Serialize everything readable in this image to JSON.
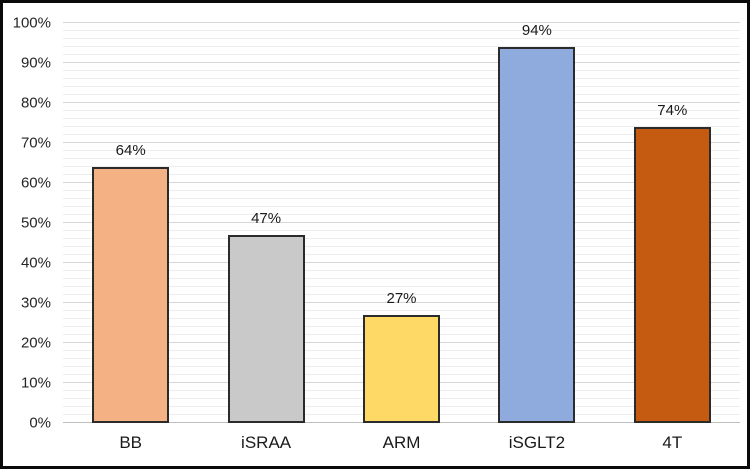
{
  "chart_data": {
    "type": "bar",
    "title": "",
    "xlabel": "",
    "ylabel": "",
    "categories": [
      "BB",
      "iSRAA",
      "ARM",
      "iSGLT2",
      "4T"
    ],
    "values": [
      64,
      47,
      27,
      94,
      74
    ],
    "value_labels": [
      "64%",
      "47%",
      "27%",
      "94%",
      "74%"
    ],
    "bar_colors": [
      "#F4B183",
      "#C9C9C9",
      "#FFD966",
      "#8FAADC",
      "#C55A11"
    ],
    "bar_border_color": "#2B2B2B",
    "ylim": [
      0,
      100
    ],
    "y_ticks": [
      "0%",
      "10%",
      "20%",
      "30%",
      "40%",
      "50%",
      "60%",
      "70%",
      "80%",
      "90%",
      "100%"
    ],
    "y_major_step": 10,
    "y_minor_step": 2,
    "grid": "horizontal, major and minor lines, no vertical gridlines",
    "legend": "none",
    "colors": {
      "major_gridline": "#D6D6D6",
      "minor_gridline": "#EDEDED",
      "axis_line": "#BFBFBF",
      "text": "#262626",
      "frame_border": "#0A0A0A",
      "background": "#FFFFFF"
    }
  }
}
